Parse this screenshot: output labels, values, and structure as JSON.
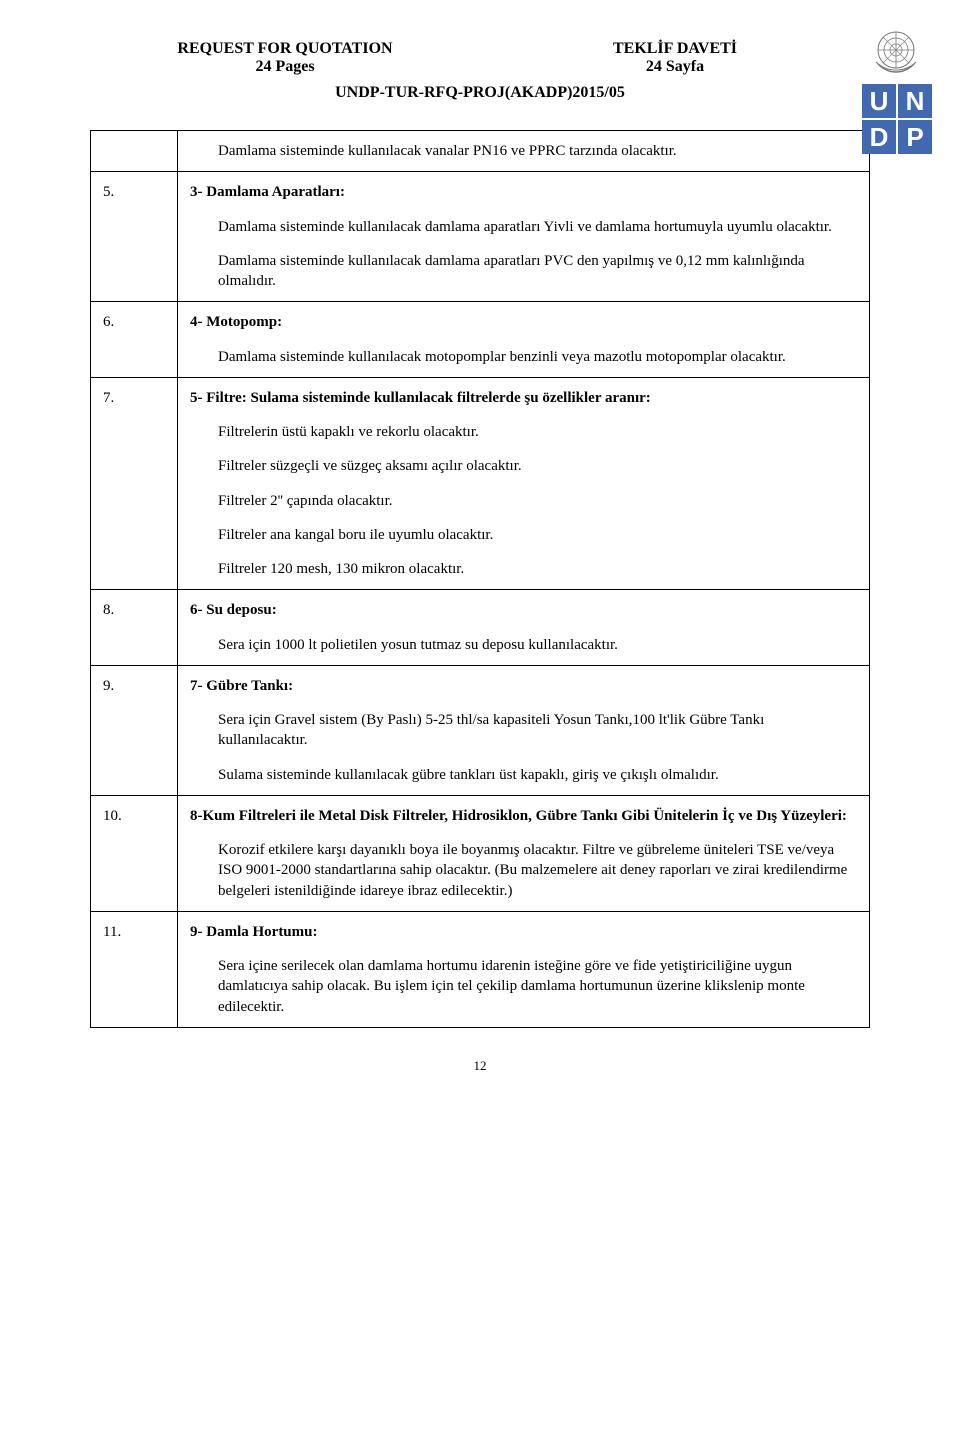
{
  "header": {
    "left_title": "REQUEST FOR QUOTATION",
    "left_sub": "24 Pages",
    "right_title": "TEKLİF DAVETİ",
    "right_sub": "24 Sayfa",
    "ref": "UNDP-TUR-RFQ-PROJ(AKADP)2015/05"
  },
  "undp_letters": [
    "U",
    "N",
    "D",
    "P"
  ],
  "rows": [
    {
      "num": "",
      "blocks": [
        {
          "type": "p",
          "indent": true,
          "text": "Damlama sisteminde kullanılacak vanalar PN16 ve PPRC tarzında olacaktır."
        }
      ]
    },
    {
      "num": "5.",
      "blocks": [
        {
          "type": "p",
          "bold": true,
          "text": "3- Damlama Aparatları:"
        },
        {
          "type": "p",
          "indent": true,
          "text": "Damlama sisteminde kullanılacak damlama aparatları Yivli ve damlama hortumuyla uyumlu olacaktır."
        },
        {
          "type": "p",
          "indent": true,
          "text": "Damlama sisteminde kullanılacak damlama aparatları PVC den yapılmış ve 0,12 mm kalınlığında olmalıdır."
        }
      ]
    },
    {
      "num": "6.",
      "blocks": [
        {
          "type": "p",
          "bold": true,
          "text": "4- Motopomp:"
        },
        {
          "type": "p",
          "indent": true,
          "text": "Damlama sisteminde kullanılacak motopomplar benzinli veya mazotlu motopomplar olacaktır."
        }
      ]
    },
    {
      "num": "7.",
      "blocks": [
        {
          "type": "p",
          "bold": true,
          "text": "5- Filtre: Sulama sisteminde kullanılacak filtrelerde şu özellikler aranır:"
        },
        {
          "type": "p",
          "indent": true,
          "text": "Filtrelerin üstü kapaklı ve rekorlu olacaktır."
        },
        {
          "type": "p",
          "indent": true,
          "text": "Filtreler süzgeçli ve süzgeç aksamı açılır olacaktır."
        },
        {
          "type": "p",
          "indent": true,
          "text": "Filtreler 2'' çapında olacaktır."
        },
        {
          "type": "p",
          "indent": true,
          "text": "Filtreler ana kangal boru ile uyumlu olacaktır."
        },
        {
          "type": "p",
          "indent": true,
          "text": "Filtreler 120 mesh, 130 mikron olacaktır."
        }
      ]
    },
    {
      "num": "8.",
      "blocks": [
        {
          "type": "p",
          "bold": true,
          "text": "6- Su deposu:"
        },
        {
          "type": "p",
          "indent": true,
          "text": "Sera için 1000 lt polietilen yosun tutmaz su deposu kullanılacaktır."
        }
      ]
    },
    {
      "num": "9.",
      "blocks": [
        {
          "type": "p",
          "bold": true,
          "text": "7- Gübre Tankı:"
        },
        {
          "type": "p",
          "indent": true,
          "text": "Sera için Gravel sistem (By Paslı) 5-25 thl/sa kapasiteli Yosun Tankı,100 lt'lik Gübre Tankı kullanılacaktır."
        },
        {
          "type": "p",
          "indent": true,
          "text": "Sulama sisteminde kullanılacak gübre tankları üst kapaklı, giriş ve çıkışlı olmalıdır."
        }
      ]
    },
    {
      "num": "10.",
      "blocks": [
        {
          "type": "p",
          "bold": true,
          "text": "8-Kum Filtreleri ile Metal Disk Filtreler, Hidrosiklon, Gübre Tankı Gibi Ünitelerin İç ve Dış Yüzeyleri:"
        },
        {
          "type": "p",
          "indent": true,
          "text": "Korozif etkilere karşı dayanıklı boya ile boyanmış olacaktır. Filtre ve gübreleme üniteleri TSE ve/veya ISO 9001-2000 standartlarına sahip olacaktır. (Bu malzemelere ait deney raporları ve zirai kredilendirme belgeleri istenildiğinde idareye ibraz edilecektir.)"
        }
      ]
    },
    {
      "num": "11.",
      "blocks": [
        {
          "type": "p",
          "bold": true,
          "text": "9- Damla Hortumu:"
        },
        {
          "type": "p",
          "indent": true,
          "text": "Sera içine serilecek olan damlama hortumu idarenin isteğine göre ve fide yetiştiriciliğine uygun damlatıcıya sahip olacak. Bu işlem için tel çekilip damlama hortumunun üzerine klikslenip monte edilecektir."
        }
      ]
    }
  ],
  "page_number": "12"
}
